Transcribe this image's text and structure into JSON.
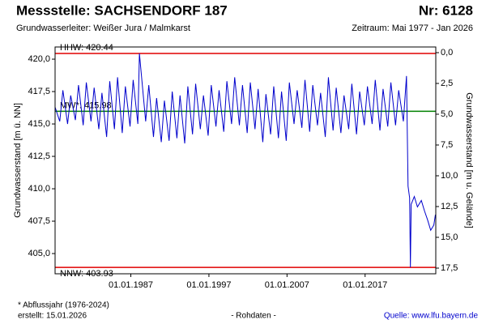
{
  "chart_data": {
    "type": "line",
    "title": "Messstelle: SACHSENDORF 187",
    "number": "Nr: 6128",
    "subtitle": "Grundwasserleiter:  Weißer Jura / Malmkarst",
    "period": "Zeitraum: Mai 1977 - Jan 2026",
    "ylabel": "Grundwasserstand [m ü. NN]",
    "y2label": "Grundwasserstand [m u. Gelände]",
    "footnote": "* Abflussjahr (1976-2024)",
    "created": "erstellt:  15.01.2026",
    "status": "- Rohdaten -",
    "source": "Quelle:  www.lfu.bayern.de",
    "color": "#0000cc",
    "xlim": [
      1977.3,
      2026.05
    ],
    "xticks": [
      {
        "value": 1987,
        "label": "01.01.1987"
      },
      {
        "value": 1997,
        "label": "01.01.1997"
      },
      {
        "value": 2007,
        "label": "01.01.2007"
      },
      {
        "value": 2017,
        "label": "01.01.2017"
      }
    ],
    "ylim": [
      403.44,
      420.94
    ],
    "yticks": [
      {
        "value": 405,
        "label": "405,0"
      },
      {
        "value": 407.5,
        "label": "407,5"
      },
      {
        "value": 410,
        "label": "410,0"
      },
      {
        "value": 412.5,
        "label": "412,5"
      },
      {
        "value": 415,
        "label": "415,0"
      },
      {
        "value": 417.5,
        "label": "417,5"
      },
      {
        "value": 420,
        "label": "420,0"
      }
    ],
    "y2lim": [
      -0.46,
      17.96
    ],
    "y2_inverted": true,
    "y2ticks": [
      {
        "value": 0,
        "label": "0,0"
      },
      {
        "value": 2.5,
        "label": "2,5"
      },
      {
        "value": 5,
        "label": "5,0"
      },
      {
        "value": 7.5,
        "label": "7,5"
      },
      {
        "value": 10,
        "label": "10,0"
      },
      {
        "value": 12.5,
        "label": "12,5"
      },
      {
        "value": 15,
        "label": "15,0"
      },
      {
        "value": 17.5,
        "label": "17,5"
      }
    ],
    "reference_lines": [
      {
        "label": "HHW: 420.44",
        "value": 420.44,
        "color": "#e00000",
        "label_side": "above"
      },
      {
        "label": "MW*: 415.98",
        "value": 415.98,
        "color": "#008000",
        "label_side": "above"
      },
      {
        "label": "NNW: 403.93",
        "value": 403.93,
        "color": "#e00000",
        "label_side": "below"
      }
    ],
    "x": [
      1977.3,
      1977.9,
      1978.3,
      1978.9,
      1979.3,
      1979.9,
      1980.3,
      1980.9,
      1981.3,
      1981.9,
      1982.3,
      1982.9,
      1983.3,
      1983.9,
      1984.3,
      1984.9,
      1985.3,
      1985.9,
      1986.3,
      1986.9,
      1987.3,
      1987.9,
      1988.1,
      1988.9,
      1989.3,
      1989.9,
      1990.3,
      1990.9,
      1991.3,
      1991.9,
      1992.3,
      1992.9,
      1993.3,
      1993.9,
      1994.3,
      1994.9,
      1995.3,
      1995.9,
      1996.3,
      1996.9,
      1997.3,
      1997.9,
      1998.3,
      1998.9,
      1999.3,
      1999.9,
      2000.3,
      2000.9,
      2001.3,
      2001.9,
      2002.3,
      2002.9,
      2003.3,
      2003.9,
      2004.3,
      2004.9,
      2005.3,
      2005.9,
      2006.3,
      2006.9,
      2007.3,
      2007.9,
      2008.3,
      2008.9,
      2009.3,
      2009.9,
      2010.3,
      2010.9,
      2011.3,
      2011.9,
      2012.3,
      2012.9,
      2013.3,
      2013.9,
      2014.3,
      2014.9,
      2015.3,
      2015.9,
      2016.3,
      2016.9,
      2017.3,
      2017.9,
      2018.3,
      2018.9,
      2019.3,
      2019.9,
      2020.3,
      2020.9,
      2021.3,
      2021.9,
      2022.3,
      2022.5,
      2022.7,
      2022.8,
      2022.9,
      2023.3,
      2023.7,
      2024.2,
      2024.6,
      2025.0,
      2025.4,
      2025.8,
      2026.0
    ],
    "values": [
      416.3,
      415.2,
      417.6,
      415.0,
      417.2,
      415.3,
      418.0,
      414.9,
      418.2,
      415.2,
      417.8,
      414.6,
      417.4,
      414.0,
      418.3,
      414.6,
      418.6,
      414.3,
      417.9,
      414.8,
      418.4,
      415.0,
      420.44,
      415.2,
      418.0,
      414.0,
      417.0,
      413.6,
      416.8,
      413.7,
      417.5,
      413.9,
      417.2,
      413.5,
      417.9,
      414.2,
      418.1,
      414.6,
      417.2,
      414.1,
      418.0,
      414.8,
      417.6,
      414.4,
      418.3,
      415.0,
      418.6,
      414.9,
      418.0,
      414.3,
      418.2,
      414.6,
      417.7,
      413.6,
      417.3,
      414.2,
      417.9,
      413.9,
      417.5,
      413.7,
      418.2,
      415.0,
      417.6,
      414.7,
      418.4,
      414.4,
      418.0,
      414.9,
      417.4,
      414.0,
      418.6,
      414.5,
      417.8,
      414.3,
      417.2,
      414.6,
      418.1,
      414.2,
      417.5,
      414.9,
      417.9,
      415.0,
      418.4,
      414.5,
      417.7,
      414.8,
      418.2,
      414.9,
      417.6,
      415.2,
      418.7,
      410.2,
      409.3,
      403.93,
      408.8,
      409.4,
      408.6,
      409.1,
      408.3,
      407.6,
      406.8,
      407.2,
      408.0
    ]
  }
}
